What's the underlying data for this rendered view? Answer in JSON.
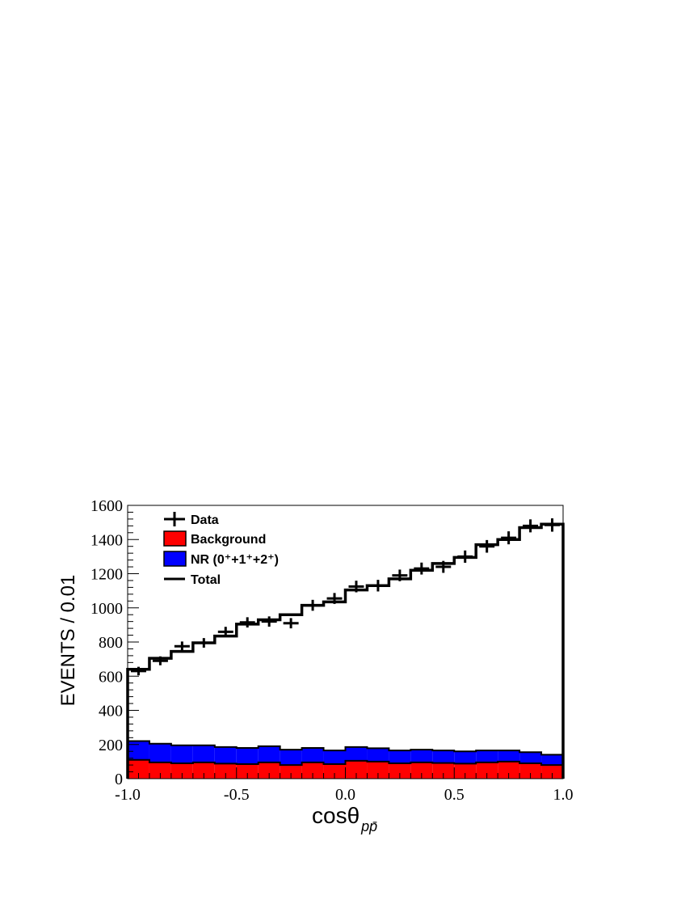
{
  "chart_data": {
    "type": "bar",
    "title": "",
    "xlabel": "cosθ",
    "xlabel_subscript": "pp̄",
    "ylabel": "EVENTS / 0.01",
    "xlim": [
      -1.0,
      1.0
    ],
    "ylim": [
      0,
      1600
    ],
    "x_ticks": [
      -1.0,
      -0.5,
      0.0,
      0.5,
      1.0
    ],
    "x_tick_labels": [
      "-1.0",
      "-0.5",
      "0.0",
      "0.5",
      "1.0"
    ],
    "y_ticks": [
      0,
      200,
      400,
      600,
      800,
      1000,
      1200,
      1400,
      1600
    ],
    "y_tick_labels": [
      "0",
      "200",
      "400",
      "600",
      "800",
      "1000",
      "1200",
      "1400",
      "1600"
    ],
    "bin_edges": [
      -1.0,
      -0.9,
      -0.8,
      -0.7,
      -0.6,
      -0.5,
      -0.4,
      -0.3,
      -0.2,
      -0.1,
      0.0,
      0.1,
      0.2,
      0.3,
      0.4,
      0.5,
      0.6,
      0.7,
      0.8,
      0.9,
      1.0
    ],
    "grid": false,
    "legend_position": "top-left",
    "series": [
      {
        "name": "Data",
        "kind": "points-with-errors",
        "color": "#000000",
        "values": [
          630,
          690,
          775,
          795,
          860,
          915,
          920,
          910,
          1015,
          1055,
          1125,
          1130,
          1190,
          1230,
          1240,
          1300,
          1360,
          1410,
          1480,
          1485
        ],
        "errors": [
          25,
          26,
          28,
          28,
          29,
          30,
          30,
          30,
          32,
          32,
          34,
          34,
          34,
          35,
          35,
          36,
          37,
          38,
          38,
          39
        ]
      },
      {
        "name": "Background",
        "kind": "stacked-fill",
        "color": "#ff0000",
        "values": [
          110,
          95,
          90,
          95,
          88,
          85,
          95,
          80,
          95,
          85,
          105,
          100,
          90,
          95,
          92,
          88,
          95,
          100,
          90,
          80
        ]
      },
      {
        "name": "NR (0⁺+1⁺+2⁺)",
        "kind": "stacked-fill",
        "color": "#0000ff",
        "values": [
          110,
          110,
          105,
          100,
          97,
          95,
          95,
          90,
          85,
          80,
          80,
          78,
          75,
          75,
          73,
          72,
          70,
          65,
          65,
          60
        ]
      },
      {
        "name": "Total",
        "kind": "step-line",
        "color": "#000000",
        "values": [
          640,
          705,
          745,
          795,
          835,
          905,
          930,
          960,
          1015,
          1035,
          1105,
          1130,
          1170,
          1220,
          1260,
          1295,
          1370,
          1400,
          1470,
          1490
        ]
      }
    ]
  }
}
